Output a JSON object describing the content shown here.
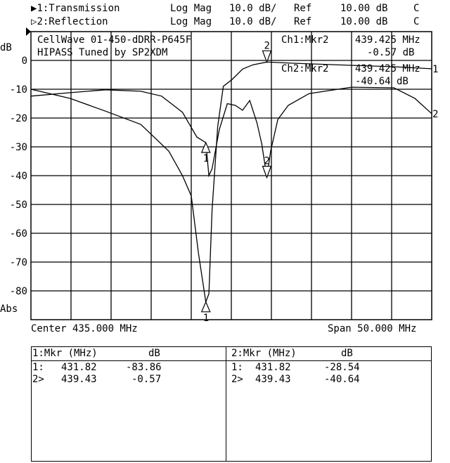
{
  "header": {
    "channels": [
      {
        "id": "ch1",
        "indicator": "▶",
        "label": "1:Transmission",
        "format": "Log Mag",
        "scale": "10.0 dB/",
        "ref_label": "Ref",
        "ref_value": "10.00 dB",
        "flag": "C"
      },
      {
        "id": "ch2",
        "indicator": "▷",
        "label": "2:Reflection",
        "format": "Log Mag",
        "scale": "10.0 dB/",
        "ref_label": "Ref",
        "ref_value": "10.00 dB",
        "flag": "C"
      }
    ]
  },
  "annotations": {
    "title_line1": "CellWave 01-450-dDRR-P645F",
    "title_line2": "HIPASS Tuned by SP2XDM",
    "ch1_marker_label": "Ch1:Mkr2",
    "ch1_marker_freq": "439.425 MHz",
    "ch1_marker_value": "-0.57 dB",
    "ch2_marker_label": "Ch2:Mkr2",
    "ch2_marker_freq": "439.425 MHz",
    "ch2_marker_value": "-40.64 dB",
    "y_unit_top": "dB",
    "y_unit_bottom": "Abs",
    "center": "Center 435.000 MHz",
    "span": "Span 50.000 MHz"
  },
  "marker_table": [
    {
      "header_mkr": "1:Mkr (MHz)",
      "header_db": "dB",
      "rows": [
        {
          "id": "1:",
          "freq": "431.82",
          "db": "-83.86"
        },
        {
          "id": "2>",
          "freq": "439.43",
          "db": "-0.57"
        }
      ]
    },
    {
      "header_mkr": "2:Mkr (MHz)",
      "header_db": "dB",
      "rows": [
        {
          "id": "1:",
          "freq": "431.82",
          "db": "-28.54"
        },
        {
          "id": "2>",
          "freq": "439.43",
          "db": "-40.64"
        }
      ]
    }
  ],
  "chart_data": {
    "type": "line",
    "xlabel": "",
    "ylabel": "dB",
    "xlim": [
      410,
      460
    ],
    "ylim": [
      -90,
      10
    ],
    "grid": true,
    "y_ticks": [
      0,
      -10,
      -20,
      -30,
      -40,
      -50,
      -60,
      -70,
      -80
    ],
    "y_tick_labels": [
      "0",
      "-10",
      "-20",
      "-30",
      "-40",
      "-50",
      "-60",
      "-70",
      "-80"
    ],
    "colors": {
      "trace": "#000000",
      "grid": "#000000"
    },
    "series": [
      {
        "name": "1",
        "x": [
          410,
          414.9,
          419.3,
          423.7,
          427.2,
          428.9,
          430,
          430.9,
          431.82,
          432.2,
          432.6,
          433.3,
          434,
          435.1,
          436.4,
          437.7,
          439.43,
          443,
          450,
          455.3,
          460
        ],
        "y": [
          -10,
          -13.2,
          -17.6,
          -22.2,
          -31.5,
          -40,
          -47,
          -67,
          -83.86,
          -81,
          -52,
          -23,
          -9,
          -6.6,
          -3,
          -1.5,
          -0.57,
          -1,
          -1.7,
          -2.2,
          -2.9
        ]
      },
      {
        "name": "2",
        "x": [
          410,
          414.9,
          419.3,
          423.7,
          426.3,
          428.9,
          430.7,
          431.82,
          432.2,
          432.6,
          433.5,
          434.5,
          435.5,
          436.4,
          437.3,
          438.2,
          438.8,
          439.43,
          439.9,
          440.8,
          442.1,
          444.7,
          450,
          455.3,
          457.9,
          460
        ],
        "y": [
          -12.4,
          -11.2,
          -10.2,
          -10.7,
          -12.4,
          -18,
          -26.6,
          -28.54,
          -40,
          -37.6,
          -24,
          -15,
          -15.6,
          -17.3,
          -13.9,
          -21.7,
          -29,
          -40.64,
          -31.5,
          -20.5,
          -15.6,
          -11.5,
          -9.3,
          -9.5,
          -13.2,
          -18.5
        ]
      }
    ],
    "markers": [
      {
        "series": "1",
        "label": "1",
        "x": 431.82,
        "y": -83.86
      },
      {
        "series": "1",
        "label": "2",
        "x": 439.43,
        "y": -0.57
      },
      {
        "series": "2",
        "label": "1",
        "x": 431.82,
        "y": -28.54
      },
      {
        "series": "2",
        "label": "2",
        "x": 439.43,
        "y": -40.64
      }
    ]
  }
}
